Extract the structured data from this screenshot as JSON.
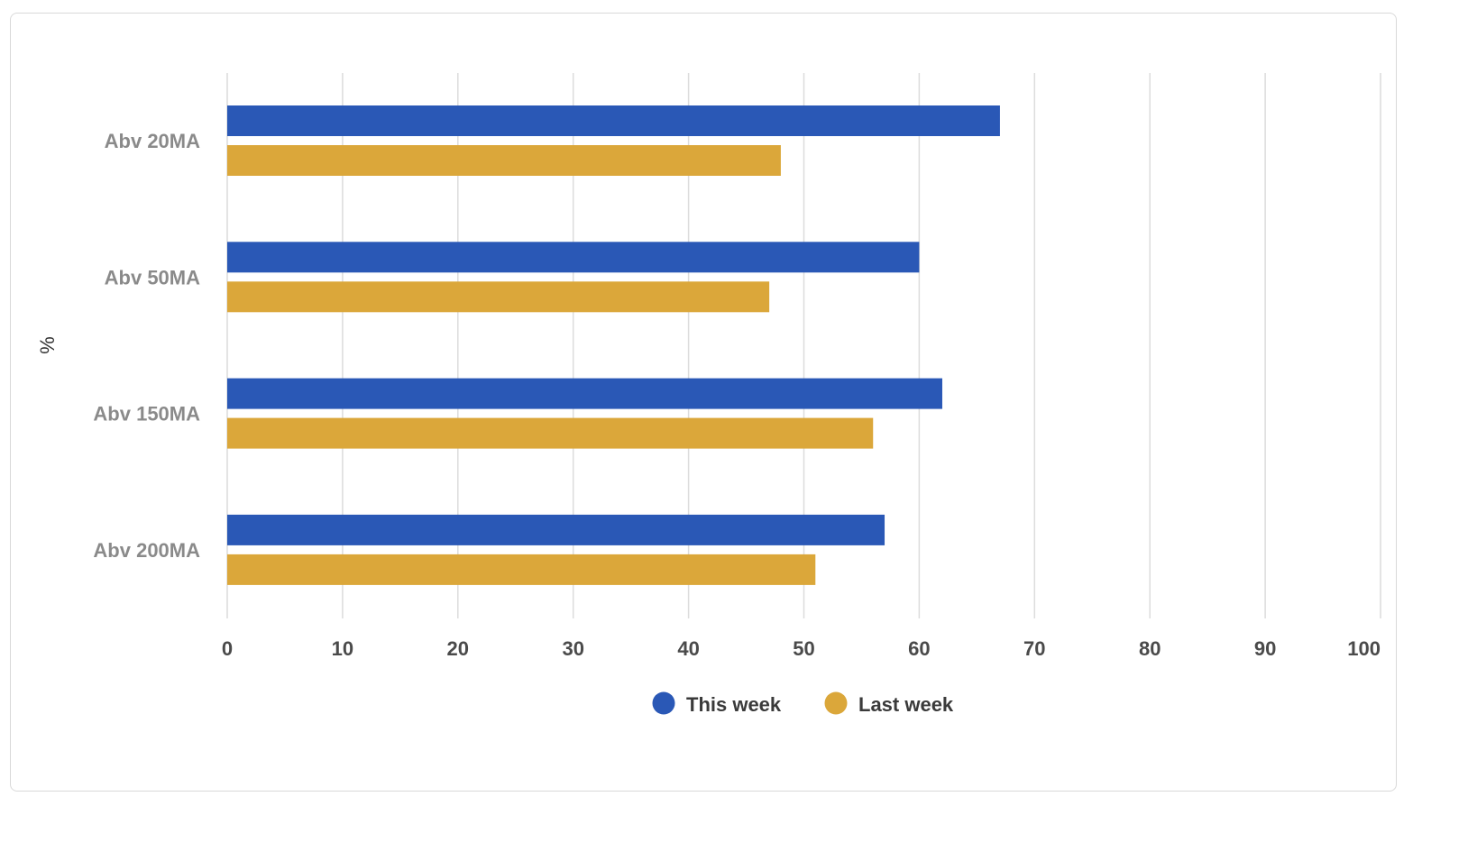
{
  "colors": {
    "this_week": "#2a58b6",
    "last_week": "#dba73a",
    "grid": "#dcdcdc"
  },
  "chart_data": {
    "type": "bar",
    "orientation": "horizontal",
    "categories": [
      "Abv 20MA",
      "Abv 50MA",
      "Abv 150MA",
      "Abv 200MA"
    ],
    "series": [
      {
        "name": "This week",
        "values": [
          67,
          60,
          62,
          57
        ]
      },
      {
        "name": "Last week",
        "values": [
          48,
          47,
          56,
          51
        ]
      }
    ],
    "title": "",
    "xlabel": "",
    "ylabel": "%",
    "xlim": [
      0,
      100
    ],
    "xticks": [
      "0",
      "10",
      "20",
      "30",
      "40",
      "50",
      "60",
      "70",
      "80",
      "90",
      "100"
    ],
    "grid": true,
    "legend": "bottom-center"
  }
}
